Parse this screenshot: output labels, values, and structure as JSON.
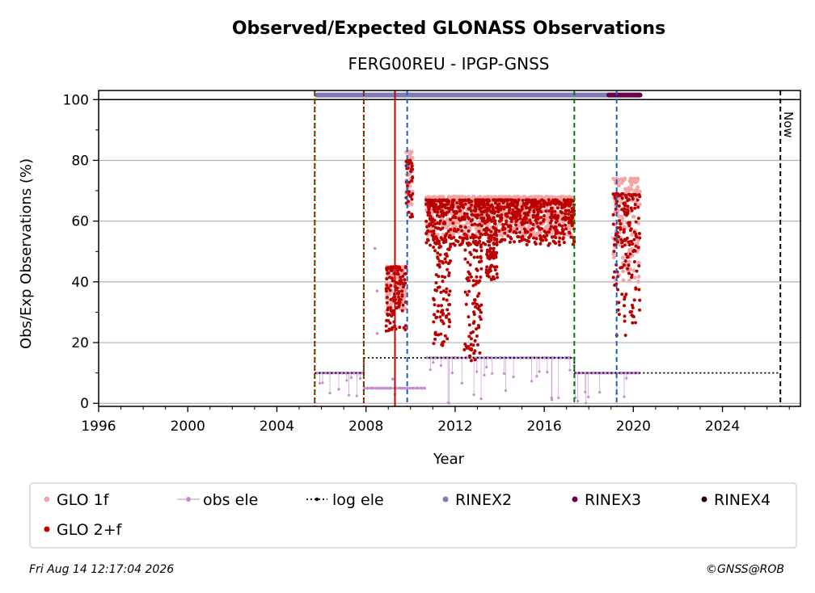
{
  "chart_data": {
    "type": "scatter",
    "title": "Observed/Expected GLONASS Observations",
    "subtitle": "FERG00REU - IPGP-GNSS",
    "xlabel": "Year",
    "ylabel": "Obs/Exp Observations (%)",
    "xlim": [
      1996,
      2027.5
    ],
    "ylim": [
      -1,
      103
    ],
    "xticks": [
      1996,
      2000,
      2004,
      2008,
      2012,
      2016,
      2020,
      2024
    ],
    "yticks": [
      0,
      20,
      40,
      60,
      80,
      100
    ],
    "grid": "horizontal",
    "now_label": "Now",
    "legend": {
      "placement": "bottom",
      "entries": [
        {
          "label": "GLO 1f",
          "color": "#f4a5a5",
          "marker": "dot"
        },
        {
          "label": "obs ele",
          "color": "#c38ed0",
          "marker": "dot-line"
        },
        {
          "label": "log ele",
          "color": "#000000",
          "marker": "dotted-line"
        },
        {
          "label": "RINEX2",
          "color": "#7f7ab8",
          "marker": "dot"
        },
        {
          "label": "RINEX3",
          "color": "#6a004a",
          "marker": "dot"
        },
        {
          "label": "RINEX4",
          "color": "#2a0018",
          "marker": "dot"
        },
        {
          "label": "GLO 2+f",
          "color": "#bb0000",
          "marker": "dot"
        }
      ]
    },
    "vertical_lines": [
      {
        "x": 2005.7,
        "color": "#008000",
        "style": "dashed"
      },
      {
        "x": 2005.7,
        "color": "#cc0000",
        "style": "dotted"
      },
      {
        "x": 2007.9,
        "color": "#008000",
        "style": "dashed"
      },
      {
        "x": 2007.9,
        "color": "#cc0000",
        "style": "dotted"
      },
      {
        "x": 2009.3,
        "color": "#cc0000",
        "style": "solid"
      },
      {
        "x": 2009.85,
        "color": "#1f5fbf",
        "style": "dashed"
      },
      {
        "x": 2017.35,
        "color": "#008000",
        "style": "dashed"
      },
      {
        "x": 2019.25,
        "color": "#1f5fbf",
        "style": "dashed"
      },
      {
        "x": 2026.6,
        "color": "#000000",
        "style": "dashed"
      }
    ],
    "series": [
      {
        "name": "GLO 1f",
        "color": "#f4a5a5",
        "segments": [
          {
            "x0": 2008.9,
            "x1": 2009.8,
            "low": 30,
            "high": 45
          },
          {
            "x0": 2009.8,
            "x1": 2010.1,
            "low": 65,
            "high": 83
          },
          {
            "x0": 2010.7,
            "x1": 2017.35,
            "low": 55,
            "high": 68
          },
          {
            "x0": 2019.1,
            "x1": 2020.3,
            "low": 40,
            "high": 74
          }
        ]
      },
      {
        "name": "GLO 2+f",
        "color": "#bb0000",
        "segments": [
          {
            "x0": 2008.9,
            "x1": 2009.8,
            "low": 23,
            "high": 45
          },
          {
            "x0": 2009.8,
            "x1": 2010.1,
            "low": 60,
            "high": 80
          },
          {
            "x0": 2010.7,
            "x1": 2017.35,
            "low": 52,
            "high": 67
          },
          {
            "x0": 2019.1,
            "x1": 2020.3,
            "low": 22,
            "high": 69
          }
        ],
        "dips": [
          {
            "x0": 2011.0,
            "x1": 2011.8,
            "low": 18
          },
          {
            "x0": 2012.4,
            "x1": 2013.2,
            "low": 12
          },
          {
            "x0": 2013.4,
            "x1": 2013.9,
            "low": 40
          }
        ]
      },
      {
        "name": "obs ele",
        "color": "#c38ed0",
        "steps": [
          {
            "x0": 2005.8,
            "x1": 2007.9,
            "y": 10
          },
          {
            "x0": 2007.9,
            "x1": 2010.7,
            "y": 5
          },
          {
            "x0": 2010.7,
            "x1": 2017.35,
            "y": 15
          },
          {
            "x0": 2017.35,
            "x1": 2020.3,
            "y": 10
          }
        ]
      },
      {
        "name": "log ele",
        "color": "#000000",
        "steps": [
          {
            "x0": 2005.7,
            "x1": 2007.9,
            "y": 10
          },
          {
            "x0": 2007.9,
            "x1": 2017.35,
            "y": 15
          },
          {
            "x0": 2017.35,
            "x1": 2026.6,
            "y": 10
          }
        ]
      },
      {
        "name": "RINEX2",
        "color": "#7f7ab8",
        "x0": 2005.8,
        "x1": 2018.9,
        "y": 101.5
      },
      {
        "name": "RINEX3",
        "color": "#6a004a",
        "x0": 2018.9,
        "x1": 2020.3,
        "y": 101.5
      }
    ]
  },
  "footer": {
    "timestamp": "Fri Aug 14 12:17:04 2026",
    "copyright": "©GNSS@ROB"
  }
}
